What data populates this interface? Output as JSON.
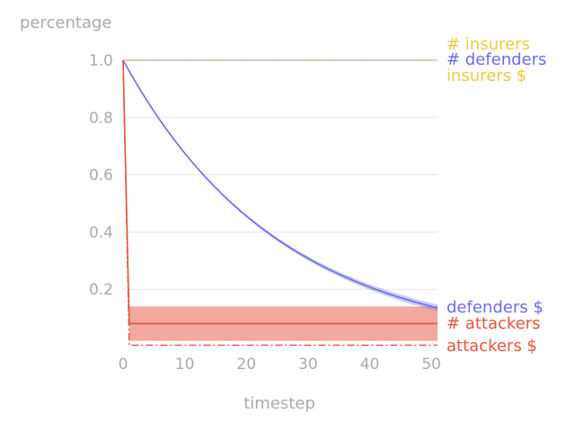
{
  "chart_data": {
    "type": "line",
    "title": "",
    "ylabel": "percentage",
    "xlabel": "timestep",
    "xlim": [
      0,
      51
    ],
    "ylim": [
      0,
      1.0
    ],
    "x_ticks": [
      0,
      10,
      20,
      30,
      40,
      50
    ],
    "y_ticks": [
      0.2,
      0.4,
      0.6,
      0.8,
      1.0
    ],
    "grid": "horizontal",
    "series": [
      {
        "key": "num_insurers",
        "name": "# insurers",
        "color": "#f5c842",
        "style": "dotted",
        "x": [
          0,
          51
        ],
        "y": [
          1.0,
          1.0
        ]
      },
      {
        "key": "insurers_money",
        "name": "insurers $",
        "color": "#f5c842",
        "style": "dotted",
        "x": [
          0,
          51
        ],
        "y": [
          1.0,
          1.0
        ]
      },
      {
        "key": "num_defenders",
        "name": "# defenders",
        "color": "#6b6bef",
        "style": "solid",
        "x": [
          0,
          51
        ],
        "y": [
          1.0,
          1.0
        ]
      },
      {
        "key": "defenders_money",
        "name": "defenders $",
        "color": "#6b6bef",
        "style": "solid",
        "x": [
          0,
          5,
          10,
          15,
          20,
          25,
          30,
          35,
          40,
          45,
          51
        ],
        "y": [
          1.0,
          0.82,
          0.67,
          0.55,
          0.455,
          0.37,
          0.305,
          0.25,
          0.205,
          0.167,
          0.135
        ],
        "band": 0.006
      },
      {
        "key": "num_attackers",
        "name": "# attackers",
        "color": "#e8533c",
        "style": "solid",
        "x": [
          0,
          1,
          51
        ],
        "y": [
          1.0,
          0.08,
          0.08
        ],
        "band_low": 0.02,
        "band_high": 0.14
      },
      {
        "key": "attackers_money",
        "name": "attackers $",
        "color": "#e8533c",
        "style": "dashdot",
        "x": [
          0,
          1,
          51
        ],
        "y": [
          1.0,
          0.005,
          0.005
        ]
      }
    ]
  }
}
